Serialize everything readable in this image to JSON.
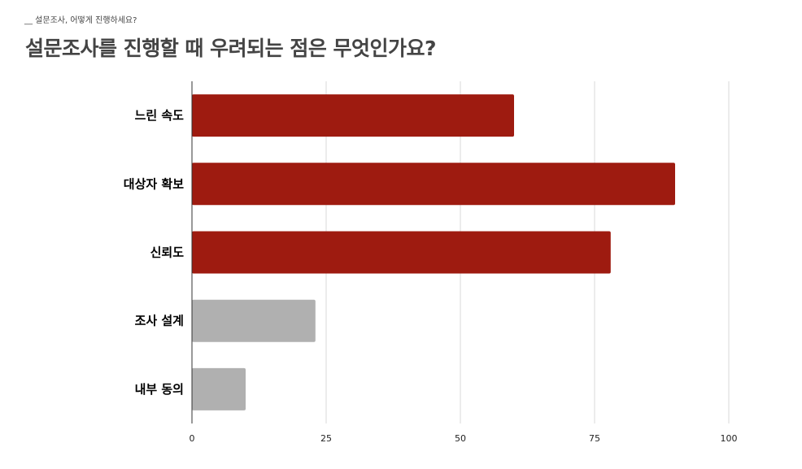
{
  "header": {
    "breadcrumb": "__ 설문조사, 어떻게 진행하세요?",
    "title": "설문조사를 진행할 때 우려되는 점은 무엇인가요?"
  },
  "colors": {
    "highlight": "#9e1b10",
    "muted": "#b0b0b0",
    "grid": "#d9d9d9",
    "axis": "#333333"
  },
  "chart_data": {
    "type": "bar",
    "orientation": "horizontal",
    "categories": [
      "느린 속도",
      "대상자 확보",
      "신뢰도",
      "조사 설계",
      "내부 동의"
    ],
    "values": [
      60,
      90,
      78,
      23,
      10
    ],
    "bar_colors": [
      "#9e1b10",
      "#9e1b10",
      "#9e1b10",
      "#b0b0b0",
      "#b0b0b0"
    ],
    "xlim": [
      0,
      100
    ],
    "xticks": [
      "0",
      "25",
      "50",
      "75",
      "100"
    ],
    "xtick_values": [
      0,
      25,
      50,
      75,
      100
    ],
    "grid": true,
    "legend": "none",
    "xlabel": "",
    "ylabel": ""
  }
}
